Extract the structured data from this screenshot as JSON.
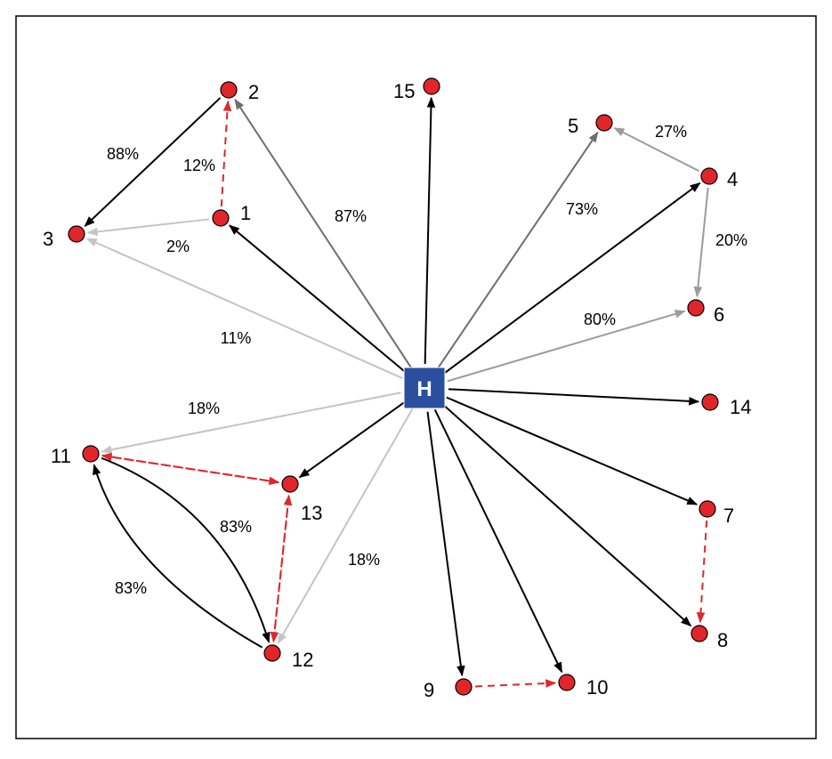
{
  "colors": {
    "black_edge": "#000000",
    "dark_gray_edge": "#6e6e6e",
    "mid_gray_edge": "#9c9c9c",
    "light_gray_edge": "#c4c4c4",
    "dashed_edge": "#e0262b",
    "node_fill": "#e0262b",
    "hub_fill": "#2b4f9e"
  },
  "hub": {
    "id": "H",
    "label": "H"
  },
  "nodes": [
    {
      "id": "1",
      "label": "1"
    },
    {
      "id": "2",
      "label": "2"
    },
    {
      "id": "3",
      "label": "3"
    },
    {
      "id": "4",
      "label": "4"
    },
    {
      "id": "5",
      "label": "5"
    },
    {
      "id": "6",
      "label": "6"
    },
    {
      "id": "7",
      "label": "7"
    },
    {
      "id": "8",
      "label": "8"
    },
    {
      "id": "9",
      "label": "9"
    },
    {
      "id": "10",
      "label": "10"
    },
    {
      "id": "11",
      "label": "11"
    },
    {
      "id": "12",
      "label": "12"
    },
    {
      "id": "13",
      "label": "13"
    },
    {
      "id": "14",
      "label": "14"
    },
    {
      "id": "15",
      "label": "15"
    }
  ],
  "edges": [
    {
      "from": "H",
      "to": "15",
      "style": "black"
    },
    {
      "from": "H",
      "to": "2",
      "style": "dark_gray",
      "label": "87%"
    },
    {
      "from": "H",
      "to": "1",
      "style": "black"
    },
    {
      "from": "H",
      "to": "3",
      "style": "light_gray",
      "label": "11%"
    },
    {
      "from": "H",
      "to": "5",
      "style": "dark_gray",
      "label": "73%"
    },
    {
      "from": "H",
      "to": "4",
      "style": "black"
    },
    {
      "from": "H",
      "to": "6",
      "style": "mid_gray",
      "label": "80%"
    },
    {
      "from": "H",
      "to": "14",
      "style": "black"
    },
    {
      "from": "H",
      "to": "7",
      "style": "black"
    },
    {
      "from": "H",
      "to": "8",
      "style": "black"
    },
    {
      "from": "H",
      "to": "10",
      "style": "black"
    },
    {
      "from": "H",
      "to": "9",
      "style": "black"
    },
    {
      "from": "H",
      "to": "12",
      "style": "light_gray",
      "label": "18%"
    },
    {
      "from": "H",
      "to": "13",
      "style": "black"
    },
    {
      "from": "H",
      "to": "11",
      "style": "light_gray",
      "label": "18%"
    },
    {
      "from": "2",
      "to": "3",
      "style": "black",
      "label": "88%"
    },
    {
      "from": "1",
      "to": "2",
      "style": "dashed",
      "label": "12%"
    },
    {
      "from": "1",
      "to": "3",
      "style": "light_gray",
      "label": "2%"
    },
    {
      "from": "4",
      "to": "5",
      "style": "mid_gray",
      "label": "27%"
    },
    {
      "from": "4",
      "to": "6",
      "style": "mid_gray",
      "label": "20%"
    },
    {
      "from": "7",
      "to": "8",
      "style": "dashed"
    },
    {
      "from": "9",
      "to": "10",
      "style": "dashed"
    },
    {
      "from": "13",
      "to": "11",
      "style": "dashed"
    },
    {
      "from": "11",
      "to": "13",
      "style": "dashed"
    },
    {
      "from": "13",
      "to": "12",
      "style": "dashed"
    },
    {
      "from": "12",
      "to": "13",
      "style": "dashed"
    },
    {
      "from": "11",
      "to": "12",
      "style": "black",
      "label": "83%"
    },
    {
      "from": "12",
      "to": "11",
      "style": "black",
      "label": "83%"
    }
  ]
}
